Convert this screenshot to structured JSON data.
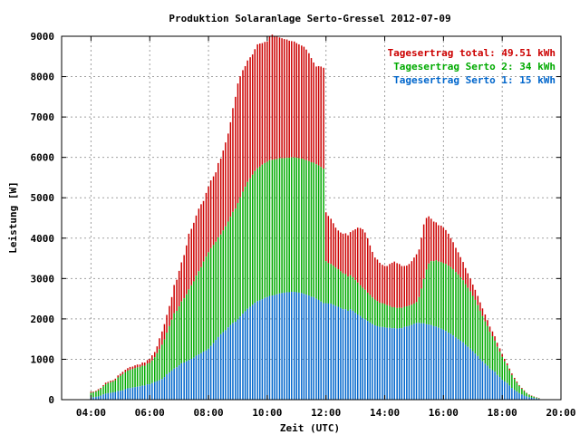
{
  "chart_data": {
    "type": "bar",
    "title": "Produktion Solaranlage Serto-Gressel 2012-07-09",
    "xlabel": "Zeit (UTC)",
    "ylabel": "Leistung [W]",
    "xlim": [
      3,
      20
    ],
    "ylim": [
      0,
      9000
    ],
    "x_ticks": [
      "04:00",
      "06:00",
      "08:00",
      "10:00",
      "12:00",
      "14:00",
      "16:00",
      "18:00",
      "20:00"
    ],
    "y_ticks": [
      "0",
      "1000",
      "2000",
      "3000",
      "4000",
      "5000",
      "6000",
      "7000",
      "8000",
      "9000"
    ],
    "grid": true,
    "legend_position": "top-right",
    "stacking": "cumulative",
    "colors": {
      "total": "#cc0000",
      "serto2": "#00aa00",
      "serto1": "#0066cc",
      "grid": "#a0a0a0"
    },
    "legend": [
      {
        "text": "Tagesertrag total: 49.51 kWh",
        "color": "#cc0000"
      },
      {
        "text": "Tagesertrag Serto 2: 34 kWh",
        "color": "#00aa00"
      },
      {
        "text": "Tagesertrag Serto 1: 15 kWh",
        "color": "#0066cc"
      }
    ],
    "series": [
      {
        "name": "Serto 1",
        "color": "#0066cc"
      },
      {
        "name": "Serto 2",
        "color": "#00aa00"
      },
      {
        "name": "total",
        "color": "#cc0000"
      }
    ],
    "x_hours": [
      4.0,
      4.08,
      4.17,
      4.25,
      4.33,
      4.42,
      4.5,
      4.58,
      4.67,
      4.75,
      4.83,
      4.92,
      5.0,
      5.08,
      5.17,
      5.25,
      5.33,
      5.42,
      5.5,
      5.58,
      5.67,
      5.75,
      5.83,
      5.92,
      6.0,
      6.08,
      6.17,
      6.25,
      6.33,
      6.42,
      6.5,
      6.58,
      6.67,
      6.75,
      6.83,
      6.92,
      7.0,
      7.08,
      7.17,
      7.25,
      7.33,
      7.42,
      7.5,
      7.58,
      7.67,
      7.75,
      7.83,
      7.92,
      8.0,
      8.08,
      8.17,
      8.25,
      8.33,
      8.42,
      8.5,
      8.58,
      8.67,
      8.75,
      8.83,
      8.92,
      9.0,
      9.08,
      9.17,
      9.25,
      9.33,
      9.42,
      9.5,
      9.58,
      9.67,
      9.75,
      9.83,
      9.92,
      10.0,
      10.08,
      10.17,
      10.25,
      10.33,
      10.42,
      10.5,
      10.58,
      10.67,
      10.75,
      10.83,
      10.92,
      11.0,
      11.08,
      11.17,
      11.25,
      11.33,
      11.42,
      11.5,
      11.58,
      11.67,
      11.75,
      11.83,
      11.92,
      12.0,
      12.08,
      12.17,
      12.25,
      12.33,
      12.42,
      12.5,
      12.58,
      12.67,
      12.75,
      12.83,
      12.92,
      13.0,
      13.08,
      13.17,
      13.25,
      13.33,
      13.42,
      13.5,
      13.58,
      13.67,
      13.75,
      13.83,
      13.92,
      14.0,
      14.08,
      14.17,
      14.25,
      14.33,
      14.42,
      14.5,
      14.58,
      14.67,
      14.75,
      14.83,
      14.92,
      15.0,
      15.08,
      15.17,
      15.25,
      15.33,
      15.42,
      15.5,
      15.58,
      15.67,
      15.75,
      15.83,
      15.92,
      16.0,
      16.08,
      16.17,
      16.25,
      16.33,
      16.42,
      16.5,
      16.58,
      16.67,
      16.75,
      16.83,
      16.92,
      17.0,
      17.08,
      17.17,
      17.25,
      17.33,
      17.42,
      17.5,
      17.58,
      17.67,
      17.75,
      17.83,
      17.92,
      18.0,
      18.08,
      18.17,
      18.25,
      18.33,
      18.42,
      18.5,
      18.58,
      18.67,
      18.75,
      18.83,
      18.92,
      19.0,
      19.08,
      19.17,
      19.25,
      19.33,
      19.42,
      19.5,
      19.58
    ],
    "serto1_w": [
      60,
      60,
      70,
      80,
      100,
      130,
      150,
      160,
      170,
      180,
      190,
      210,
      220,
      230,
      260,
      280,
      290,
      300,
      310,
      320,
      330,
      350,
      350,
      380,
      380,
      410,
      440,
      460,
      480,
      510,
      560,
      630,
      670,
      720,
      770,
      800,
      850,
      900,
      920,
      950,
      980,
      1010,
      1040,
      1090,
      1120,
      1150,
      1190,
      1220,
      1260,
      1330,
      1400,
      1480,
      1550,
      1620,
      1670,
      1720,
      1790,
      1850,
      1900,
      1930,
      1990,
      2060,
      2130,
      2190,
      2250,
      2300,
      2350,
      2400,
      2440,
      2460,
      2490,
      2520,
      2540,
      2570,
      2580,
      2590,
      2610,
      2630,
      2640,
      2650,
      2660,
      2660,
      2670,
      2670,
      2660,
      2650,
      2640,
      2620,
      2600,
      2580,
      2550,
      2540,
      2500,
      2470,
      2430,
      2390,
      2390,
      2380,
      2380,
      2350,
      2320,
      2300,
      2270,
      2240,
      2240,
      2200,
      2240,
      2200,
      2150,
      2110,
      2070,
      2020,
      1990,
      1950,
      1910,
      1870,
      1840,
      1820,
      1800,
      1800,
      1790,
      1780,
      1780,
      1770,
      1770,
      1760,
      1770,
      1770,
      1800,
      1810,
      1830,
      1850,
      1880,
      1900,
      1900,
      1890,
      1890,
      1870,
      1860,
      1850,
      1820,
      1810,
      1780,
      1760,
      1730,
      1700,
      1660,
      1630,
      1590,
      1540,
      1500,
      1460,
      1420,
      1360,
      1310,
      1260,
      1200,
      1140,
      1080,
      1010,
      950,
      890,
      840,
      770,
      730,
      690,
      610,
      560,
      490,
      450,
      410,
      350,
      290,
      240,
      200,
      160,
      130,
      100,
      80,
      60,
      50,
      40,
      30,
      20
    ],
    "serto2_w": [
      110,
      120,
      130,
      150,
      170,
      200,
      230,
      250,
      260,
      270,
      290,
      340,
      370,
      400,
      420,
      440,
      450,
      460,
      470,
      480,
      480,
      490,
      490,
      510,
      530,
      560,
      610,
      690,
      770,
      850,
      930,
      1030,
      1150,
      1260,
      1370,
      1400,
      1460,
      1530,
      1590,
      1660,
      1750,
      1820,
      1890,
      1980,
      2060,
      2130,
      2230,
      2320,
      2390,
      2420,
      2430,
      2430,
      2470,
      2470,
      2520,
      2570,
      2620,
      2680,
      2750,
      2800,
      2880,
      2950,
      3020,
      3080,
      3140,
      3180,
      3220,
      3260,
      3290,
      3310,
      3330,
      3340,
      3350,
      3360,
      3360,
      3360,
      3350,
      3350,
      3340,
      3330,
      3330,
      3330,
      3330,
      3330,
      3330,
      3330,
      3330,
      3330,
      3330,
      3330,
      3330,
      3330,
      3330,
      3330,
      3330,
      3330,
      1040,
      1000,
      980,
      970,
      950,
      930,
      910,
      890,
      870,
      850,
      840,
      830,
      810,
      790,
      760,
      750,
      730,
      700,
      680,
      660,
      640,
      620,
      600,
      590,
      580,
      560,
      540,
      520,
      520,
      510,
      510,
      500,
      500,
      500,
      500,
      500,
      500,
      520,
      640,
      860,
      1100,
      1350,
      1510,
      1580,
      1610,
      1640,
      1640,
      1650,
      1650,
      1660,
      1660,
      1650,
      1640,
      1620,
      1600,
      1570,
      1540,
      1500,
      1460,
      1420,
      1370,
      1330,
      1260,
      1190,
      1120,
      1050,
      980,
      910,
      840,
      770,
      700,
      630,
      570,
      500,
      440,
      380,
      320,
      270,
      220,
      180,
      140,
      110,
      80,
      60,
      40,
      30,
      20,
      10
    ],
    "total_w": [
      30,
      20,
      20,
      30,
      20,
      30,
      40,
      30,
      40,
      30,
      40,
      50,
      50,
      60,
      60,
      60,
      70,
      60,
      70,
      70,
      60,
      80,
      80,
      90,
      100,
      130,
      130,
      170,
      270,
      330,
      380,
      440,
      500,
      560,
      700,
      770,
      880,
      970,
      1070,
      1210,
      1380,
      1400,
      1450,
      1490,
      1550,
      1560,
      1500,
      1580,
      1630,
      1680,
      1700,
      1720,
      1840,
      1880,
      1980,
      2080,
      2180,
      2340,
      2570,
      2770,
      2960,
      3000,
      3010,
      2990,
      3010,
      3000,
      2980,
      3020,
      3070,
      3050,
      3010,
      3000,
      2980,
      3070,
      3100,
      3060,
      3030,
      2990,
      2970,
      2950,
      2930,
      2900,
      2880,
      2870,
      2840,
      2820,
      2800,
      2790,
      2740,
      2670,
      2580,
      2480,
      2420,
      2460,
      2490,
      2500,
      1210,
      1170,
      1120,
      1050,
      990,
      960,
      960,
      980,
      1010,
      1020,
      1070,
      1160,
      1260,
      1360,
      1420,
      1450,
      1420,
      1350,
      1230,
      1130,
      1040,
      1030,
      990,
      950,
      940,
      970,
      1040,
      1100,
      1130,
      1110,
      1080,
      1040,
      1010,
      1010,
      1030,
      1080,
      1140,
      1180,
      1180,
      1260,
      1350,
      1280,
      1170,
      1050,
      980,
      940,
      900,
      900,
      880,
      840,
      790,
      720,
      670,
      600,
      550,
      500,
      450,
      400,
      360,
      320,
      280,
      250,
      230,
      210,
      190,
      170,
      150,
      130,
      120,
      110,
      100,
      80,
      70,
      60,
      50,
      40,
      40,
      30,
      30,
      20,
      20,
      20,
      10,
      10,
      10,
      10,
      10,
      10,
      10,
      10
    ]
  }
}
